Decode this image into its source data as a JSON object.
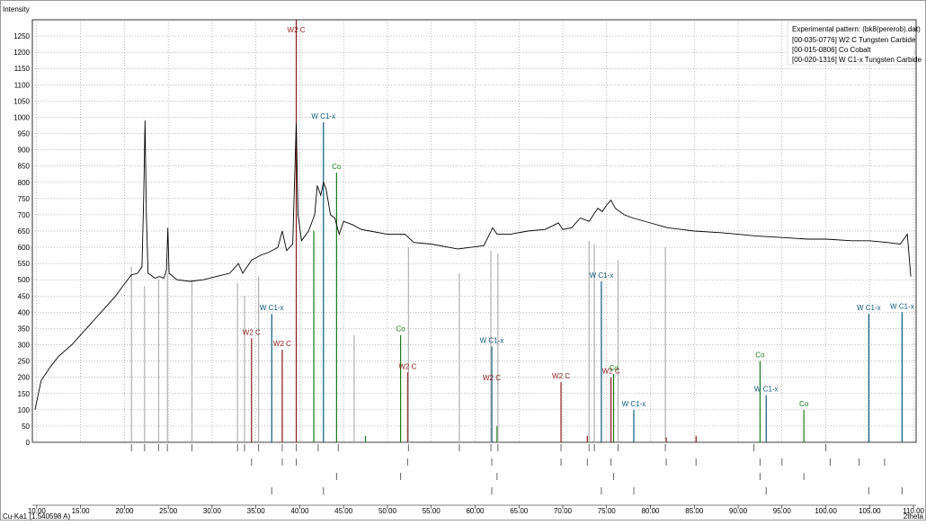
{
  "chart_data": {
    "type": "line",
    "ylabel": "Intensity",
    "xlabel": "2theta",
    "wavelength_label": "Cu-Ka1 (1.540598 A)",
    "xlim": [
      9.5,
      110.3
    ],
    "ylim": [
      0,
      1300
    ],
    "x_ticks": [
      10,
      15,
      20,
      25,
      30,
      35,
      40,
      45,
      50,
      55,
      60,
      65,
      70,
      75,
      80,
      85,
      90,
      95,
      100,
      105,
      110
    ],
    "x_tick_labels": [
      "10.00",
      "15.00",
      "20.00",
      "25.00",
      "30.00",
      "35.00",
      "40.00",
      "45.00",
      "50.00",
      "55.00",
      "60.00",
      "65.00",
      "70.00",
      "75.00",
      "80.00",
      "85.00",
      "90.00",
      "95.00",
      "100.00",
      "105.00",
      "110.00"
    ],
    "y_ticks": [
      0,
      50,
      100,
      150,
      200,
      250,
      300,
      350,
      400,
      450,
      500,
      550,
      600,
      650,
      700,
      750,
      800,
      850,
      900,
      950,
      1000,
      1050,
      1100,
      1150,
      1200,
      1250
    ],
    "grid": true,
    "legend_position": "top-right",
    "legend": [
      {
        "text": "Experimental pattern: (bk8(pererob).dat)",
        "color": "#000000"
      },
      {
        "text": "[00-035-0776] W2 C Tungsten Carbide",
        "color": "#8b1a1a"
      },
      {
        "text": "[00-015-0806] Co Cobalt",
        "color": "#1a7a1a"
      },
      {
        "text": "[00-020-1316] W C1-x Tungsten Carbide",
        "color": "#0f5b7a"
      }
    ],
    "pattern_points": [
      [
        9.8,
        100
      ],
      [
        10.5,
        190
      ],
      [
        11.5,
        230
      ],
      [
        12.5,
        265
      ],
      [
        14,
        300
      ],
      [
        15,
        330
      ],
      [
        16,
        360
      ],
      [
        17,
        390
      ],
      [
        18,
        420
      ],
      [
        19,
        450
      ],
      [
        19.8,
        480
      ],
      [
        20.8,
        515
      ],
      [
        21.5,
        520
      ],
      [
        22,
        540
      ],
      [
        22.2,
        760
      ],
      [
        22.35,
        990
      ],
      [
        22.5,
        700
      ],
      [
        22.7,
        520
      ],
      [
        23.5,
        505
      ],
      [
        24,
        510
      ],
      [
        24.5,
        505
      ],
      [
        24.8,
        530
      ],
      [
        24.95,
        660
      ],
      [
        25.1,
        520
      ],
      [
        26,
        500
      ],
      [
        27.5,
        495
      ],
      [
        29,
        500
      ],
      [
        30.5,
        510
      ],
      [
        32,
        520
      ],
      [
        33,
        550
      ],
      [
        33.5,
        520
      ],
      [
        34.5,
        560
      ],
      [
        35.5,
        575
      ],
      [
        36.5,
        585
      ],
      [
        37.5,
        600
      ],
      [
        38,
        650
      ],
      [
        38.5,
        590
      ],
      [
        39.2,
        610
      ],
      [
        39.6,
        980
      ],
      [
        39.8,
        700
      ],
      [
        40.2,
        620
      ],
      [
        41,
        650
      ],
      [
        41.7,
        700
      ],
      [
        42,
        790
      ],
      [
        42.4,
        760
      ],
      [
        42.7,
        800
      ],
      [
        43,
        780
      ],
      [
        43.5,
        700
      ],
      [
        44,
        690
      ],
      [
        44.5,
        640
      ],
      [
        45,
        680
      ],
      [
        46,
        670
      ],
      [
        47,
        655
      ],
      [
        48,
        650
      ],
      [
        50,
        640
      ],
      [
        52,
        640
      ],
      [
        53,
        615
      ],
      [
        55,
        610
      ],
      [
        58,
        595
      ],
      [
        61,
        605
      ],
      [
        62,
        660
      ],
      [
        62.5,
        640
      ],
      [
        64,
        640
      ],
      [
        66,
        650
      ],
      [
        68,
        655
      ],
      [
        69.5,
        675
      ],
      [
        70,
        655
      ],
      [
        71,
        660
      ],
      [
        72,
        690
      ],
      [
        73,
        680
      ],
      [
        73.5,
        700
      ],
      [
        74,
        720
      ],
      [
        74.5,
        710
      ],
      [
        75,
        730
      ],
      [
        75.5,
        745
      ],
      [
        76,
        720
      ],
      [
        77,
        700
      ],
      [
        78,
        690
      ],
      [
        80,
        675
      ],
      [
        82,
        660
      ],
      [
        85,
        650
      ],
      [
        88,
        645
      ],
      [
        90,
        640
      ],
      [
        92,
        635
      ],
      [
        95,
        630
      ],
      [
        98,
        625
      ],
      [
        100,
        625
      ],
      [
        103,
        620
      ],
      [
        105,
        620
      ],
      [
        107,
        615
      ],
      [
        108.5,
        610
      ],
      [
        109.3,
        640
      ],
      [
        109.7,
        510
      ]
    ],
    "reference_patterns": [
      {
        "phase": "W2 C",
        "color": "#8b1a1a",
        "peaks": [
          [
            34.5,
            320
          ],
          [
            38.0,
            285
          ],
          [
            39.6,
            1300
          ],
          [
            52.3,
            215
          ],
          [
            61.9,
            180
          ],
          [
            69.8,
            185
          ],
          [
            72.8,
            20
          ],
          [
            75.5,
            200
          ],
          [
            81.8,
            15
          ],
          [
            85.2,
            20
          ]
        ],
        "annotations": [
          {
            "x": 34.5,
            "y": 320,
            "text": "W2 C"
          },
          {
            "x": 38.0,
            "y": 285,
            "text": "W2 C"
          },
          {
            "x": 39.6,
            "y": 1250,
            "text": "W2 C"
          },
          {
            "x": 52.3,
            "y": 215,
            "text": "W2 C"
          },
          {
            "x": 61.9,
            "y": 180,
            "text": "W2 C"
          },
          {
            "x": 69.8,
            "y": 185,
            "text": "W2 C"
          },
          {
            "x": 75.5,
            "y": 200,
            "text": "W2 C"
          }
        ]
      },
      {
        "phase": "Co",
        "color": "#1a7a1a",
        "peaks": [
          [
            41.6,
            650
          ],
          [
            44.2,
            830
          ],
          [
            47.5,
            20
          ],
          [
            51.5,
            330
          ],
          [
            62.5,
            50
          ],
          [
            75.8,
            210
          ],
          [
            92.5,
            250
          ],
          [
            97.5,
            100
          ]
        ],
        "annotations": [
          {
            "x": 44.2,
            "y": 830,
            "text": "Co"
          },
          {
            "x": 51.5,
            "y": 330,
            "text": "Co"
          },
          {
            "x": 75.8,
            "y": 210,
            "text": "Co"
          },
          {
            "x": 92.5,
            "y": 250,
            "text": "Co"
          },
          {
            "x": 97.5,
            "y": 100,
            "text": "Co"
          }
        ]
      },
      {
        "phase": "W C1-x",
        "color": "#0f5b7a",
        "peaks": [
          [
            36.8,
            395
          ],
          [
            42.7,
            985
          ],
          [
            61.9,
            295
          ],
          [
            74.4,
            495
          ],
          [
            78.1,
            100
          ],
          [
            93.2,
            145
          ],
          [
            104.9,
            395
          ],
          [
            108.7,
            400
          ]
        ],
        "annotations": [
          {
            "x": 36.8,
            "y": 395,
            "text": "W C1-x"
          },
          {
            "x": 42.7,
            "y": 985,
            "text": "W C1-x"
          },
          {
            "x": 61.9,
            "y": 295,
            "text": "W C1-x"
          },
          {
            "x": 74.4,
            "y": 495,
            "text": "W C1-x"
          },
          {
            "x": 78.1,
            "y": 100,
            "text": "W C1-x"
          },
          {
            "x": 93.2,
            "y": 145,
            "text": "W C1-x"
          },
          {
            "x": 104.9,
            "y": 395,
            "text": "W C1-x"
          },
          {
            "x": 108.7,
            "y": 400,
            "text": "W C1-x"
          }
        ]
      },
      {
        "phase": "unassigned",
        "color": "#b0b0b0",
        "peaks": [
          [
            20.8,
            540
          ],
          [
            22.3,
            480
          ],
          [
            23.9,
            500
          ],
          [
            24.9,
            520
          ],
          [
            27.7,
            500
          ],
          [
            32.9,
            490
          ],
          [
            33.7,
            450
          ],
          [
            35.3,
            510
          ],
          [
            46.2,
            330
          ],
          [
            52.4,
            600
          ],
          [
            58.2,
            520
          ],
          [
            61.8,
            590
          ],
          [
            62.6,
            580
          ],
          [
            73.0,
            620
          ],
          [
            73.6,
            610
          ],
          [
            76.3,
            560
          ],
          [
            81.7,
            600
          ]
        ]
      }
    ],
    "marker_rows": [
      {
        "color": "#666666",
        "x": [
          20.8,
          22.3,
          23.9,
          24.9,
          27.7,
          32.9,
          33.7,
          35.3,
          38,
          39.6,
          42.1,
          44.4,
          52.4,
          58.2,
          61.8,
          62.6,
          69.8,
          73,
          73.6,
          76.3,
          81.7,
          91.8,
          100
        ]
      },
      {
        "color": "#666666",
        "x": [
          34.5,
          38,
          39.6,
          52.3,
          61.9,
          69.8,
          72.8,
          75.5,
          81.8,
          85.2,
          92.5,
          95,
          100.5,
          103.8,
          106.7
        ]
      },
      {
        "color": "#666666",
        "x": [
          44.2,
          51.5,
          62.5,
          75.8,
          92.5,
          97.5
        ]
      },
      {
        "color": "#666666",
        "x": [
          36.8,
          42.7,
          61.9,
          74.4,
          78.1,
          93.2,
          104.9,
          108.7
        ]
      }
    ]
  }
}
